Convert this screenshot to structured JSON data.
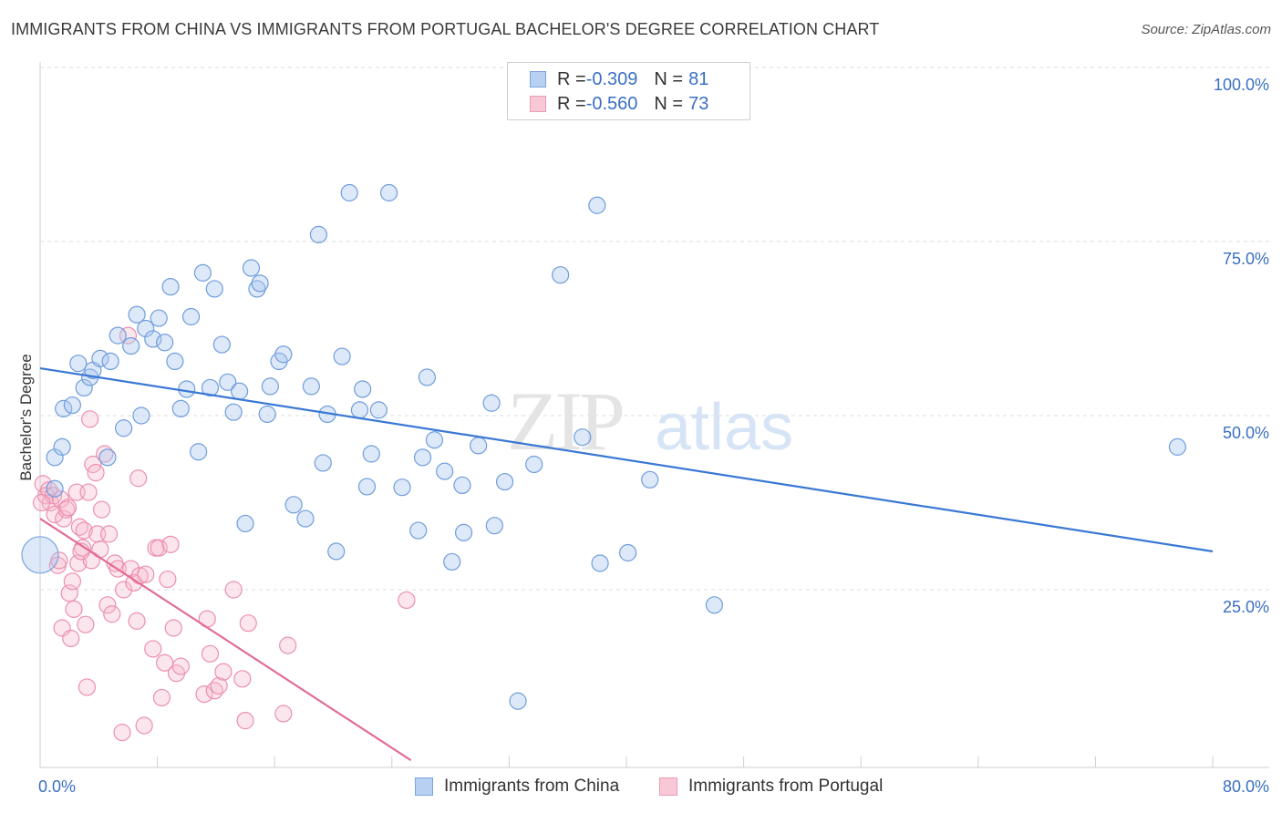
{
  "title": "IMMIGRANTS FROM CHINA VS IMMIGRANTS FROM PORTUGAL BACHELOR'S DEGREE CORRELATION CHART",
  "source": "Source: ZipAtlas.com",
  "watermark": {
    "zip": "ZIP",
    "atlas": "atlas"
  },
  "legend": {
    "rows": [
      {
        "r_label": "R = ",
        "r_value": "-0.309",
        "n_label": "N = ",
        "n_value": "81",
        "color": "#8fb3e8"
      },
      {
        "r_label": "R = ",
        "r_value": "-0.560",
        "n_label": "N = ",
        "n_value": "73",
        "color": "#f0a3bd"
      }
    ]
  },
  "bottom_legend": {
    "china": "Immigrants from China",
    "portugal": "Immigrants from Portugal"
  },
  "chart_data": {
    "type": "scatter",
    "ylabel": "Bachelor's Degree",
    "x_tick_labels": {
      "left": "0.0%",
      "right": "80.0%"
    },
    "y_tick_labels": [
      "100.0%",
      "75.0%",
      "50.0%",
      "25.0%"
    ],
    "xlim": [
      0,
      80
    ],
    "ylim": [
      0,
      100
    ],
    "y_ticks": [
      100,
      75,
      50,
      25
    ],
    "colors": {
      "china": "#3a78d4",
      "portugal": "#e26d97",
      "china_fill": "#a9c6ee",
      "portugal_fill": "#f5b8cc"
    },
    "series": [
      {
        "name": "Immigrants from China",
        "trend": {
          "x": [
            0,
            80
          ],
          "y": [
            56.8,
            30.5
          ]
        },
        "points": [
          [
            0,
            30.0
          ],
          [
            1.0,
            39.5
          ],
          [
            1.0,
            44.0
          ],
          [
            1.5,
            45.5
          ],
          [
            1.6,
            51.0
          ],
          [
            2.2,
            51.5
          ],
          [
            2.6,
            57.5
          ],
          [
            3.0,
            54.0
          ],
          [
            3.4,
            55.5
          ],
          [
            3.6,
            56.5
          ],
          [
            4.1,
            58.2
          ],
          [
            4.6,
            44.0
          ],
          [
            4.8,
            57.8
          ],
          [
            5.3,
            61.5
          ],
          [
            5.7,
            48.2
          ],
          [
            6.2,
            60.0
          ],
          [
            6.6,
            64.5
          ],
          [
            6.9,
            50.0
          ],
          [
            7.2,
            62.5
          ],
          [
            7.7,
            61.0
          ],
          [
            8.1,
            64.0
          ],
          [
            8.5,
            60.5
          ],
          [
            8.9,
            68.5
          ],
          [
            9.2,
            57.8
          ],
          [
            9.6,
            51.0
          ],
          [
            10.0,
            53.8
          ],
          [
            10.3,
            64.2
          ],
          [
            10.8,
            44.8
          ],
          [
            11.1,
            70.5
          ],
          [
            11.6,
            54.0
          ],
          [
            11.9,
            68.2
          ],
          [
            12.4,
            60.2
          ],
          [
            12.8,
            54.8
          ],
          [
            13.2,
            50.5
          ],
          [
            13.6,
            53.5
          ],
          [
            14.0,
            34.5
          ],
          [
            14.4,
            71.2
          ],
          [
            14.8,
            68.2
          ],
          [
            15.0,
            69.0
          ],
          [
            15.5,
            50.2
          ],
          [
            15.7,
            54.2
          ],
          [
            16.3,
            57.8
          ],
          [
            16.6,
            58.8
          ],
          [
            17.3,
            37.2
          ],
          [
            18.1,
            35.2
          ],
          [
            18.5,
            54.2
          ],
          [
            19.0,
            76.0
          ],
          [
            19.3,
            43.2
          ],
          [
            19.6,
            50.2
          ],
          [
            20.2,
            30.5
          ],
          [
            20.6,
            58.5
          ],
          [
            21.1,
            82.0
          ],
          [
            21.8,
            50.8
          ],
          [
            22.0,
            53.8
          ],
          [
            22.3,
            39.8
          ],
          [
            22.6,
            44.5
          ],
          [
            23.1,
            50.8
          ],
          [
            23.8,
            82.0
          ],
          [
            24.7,
            39.7
          ],
          [
            25.8,
            33.5
          ],
          [
            26.1,
            44.0
          ],
          [
            26.4,
            55.5
          ],
          [
            26.9,
            46.5
          ],
          [
            27.6,
            42.0
          ],
          [
            28.1,
            29.0
          ],
          [
            28.8,
            40.0
          ],
          [
            28.9,
            33.2
          ],
          [
            29.9,
            45.7
          ],
          [
            30.8,
            51.8
          ],
          [
            31.0,
            34.2
          ],
          [
            31.7,
            40.5
          ],
          [
            32.6,
            9.0
          ],
          [
            33.7,
            43.0
          ],
          [
            35.5,
            70.2
          ],
          [
            37.0,
            46.9
          ],
          [
            38.0,
            80.2
          ],
          [
            38.2,
            28.8
          ],
          [
            40.1,
            30.3
          ],
          [
            41.6,
            40.8
          ],
          [
            46.0,
            22.8
          ],
          [
            77.6,
            45.5
          ]
        ],
        "big_point": [
          0,
          30.0
        ]
      },
      {
        "name": "Immigrants from Portugal",
        "trend": {
          "x": [
            0,
            25.3
          ],
          "y": [
            35.2,
            0.5
          ]
        },
        "points": [
          [
            0.2,
            40.2
          ],
          [
            0.4,
            38.5
          ],
          [
            0.6,
            39.3
          ],
          [
            0.7,
            37.5
          ],
          [
            0.9,
            38.5
          ],
          [
            1.0,
            35.8
          ],
          [
            1.2,
            28.5
          ],
          [
            1.3,
            29.2
          ],
          [
            1.4,
            38.0
          ],
          [
            1.5,
            19.5
          ],
          [
            1.6,
            35.2
          ],
          [
            1.8,
            36.5
          ],
          [
            1.9,
            36.8
          ],
          [
            2.0,
            24.5
          ],
          [
            2.1,
            18.0
          ],
          [
            2.2,
            26.2
          ],
          [
            2.3,
            22.2
          ],
          [
            2.5,
            39.0
          ],
          [
            2.6,
            28.8
          ],
          [
            2.7,
            34.0
          ],
          [
            2.9,
            31.0
          ],
          [
            3.0,
            33.5
          ],
          [
            3.1,
            20.0
          ],
          [
            3.2,
            11.0
          ],
          [
            3.3,
            39.0
          ],
          [
            3.4,
            49.5
          ],
          [
            3.5,
            29.2
          ],
          [
            3.6,
            43.0
          ],
          [
            3.8,
            41.8
          ],
          [
            3.9,
            33.0
          ],
          [
            4.1,
            30.8
          ],
          [
            4.2,
            36.5
          ],
          [
            4.4,
            44.5
          ],
          [
            4.6,
            22.8
          ],
          [
            4.7,
            33.0
          ],
          [
            4.9,
            21.5
          ],
          [
            5.1,
            28.8
          ],
          [
            5.3,
            28.0
          ],
          [
            5.6,
            4.5
          ],
          [
            5.7,
            25.0
          ],
          [
            6.0,
            61.5
          ],
          [
            6.2,
            28.0
          ],
          [
            6.4,
            26.0
          ],
          [
            6.6,
            20.5
          ],
          [
            6.7,
            41.0
          ],
          [
            6.8,
            27.0
          ],
          [
            7.1,
            5.5
          ],
          [
            7.2,
            27.2
          ],
          [
            7.7,
            16.5
          ],
          [
            7.9,
            31.0
          ],
          [
            8.1,
            31.0
          ],
          [
            8.3,
            9.5
          ],
          [
            8.5,
            14.5
          ],
          [
            8.7,
            26.5
          ],
          [
            8.9,
            31.5
          ],
          [
            9.1,
            19.5
          ],
          [
            9.3,
            13.0
          ],
          [
            9.6,
            14.0
          ],
          [
            11.2,
            10.0
          ],
          [
            11.4,
            20.8
          ],
          [
            11.6,
            15.8
          ],
          [
            11.9,
            10.5
          ],
          [
            12.2,
            11.2
          ],
          [
            12.5,
            13.2
          ],
          [
            13.2,
            25.0
          ],
          [
            13.8,
            12.2
          ],
          [
            14.0,
            6.2
          ],
          [
            14.2,
            20.2
          ],
          [
            16.6,
            7.2
          ],
          [
            16.9,
            17.0
          ],
          [
            25.0,
            23.5
          ],
          [
            0.1,
            37.5
          ],
          [
            2.8,
            30.5
          ]
        ]
      }
    ]
  }
}
